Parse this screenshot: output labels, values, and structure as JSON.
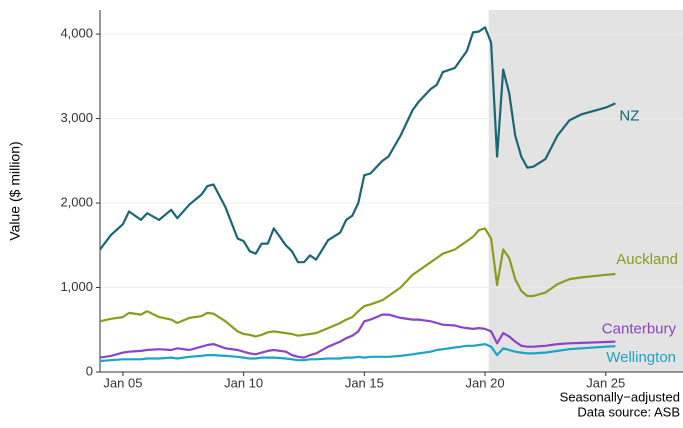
{
  "chart_data": {
    "type": "line",
    "y_label": "Value ($ million)",
    "caption": [
      "Seasonally−adjusted",
      "Data source: ASB"
    ],
    "x": [
      2004.05,
      2004.5,
      2005.0,
      2005.25,
      2005.75,
      2006.0,
      2006.5,
      2007.0,
      2007.25,
      2007.75,
      2008.25,
      2008.5,
      2008.75,
      2009.25,
      2009.75,
      2010.0,
      2010.25,
      2010.5,
      2010.75,
      2011.0,
      2011.25,
      2011.75,
      2012.0,
      2012.25,
      2012.5,
      2012.75,
      2013.0,
      2013.5,
      2014.0,
      2014.25,
      2014.5,
      2014.75,
      2015.0,
      2015.25,
      2015.75,
      2016.0,
      2016.5,
      2017.0,
      2017.25,
      2017.75,
      2018.0,
      2018.25,
      2018.75,
      2019.0,
      2019.25,
      2019.5,
      2019.75,
      2020.0,
      2020.25,
      2020.5,
      2020.75,
      2021.0,
      2021.25,
      2021.5,
      2021.75,
      2022.0,
      2022.5,
      2023.0,
      2023.5,
      2024.0,
      2025.0,
      2025.4
    ],
    "series": [
      {
        "name": "NZ",
        "color": "#1b6575",
        "values": [
          1450,
          1620,
          1750,
          1900,
          1800,
          1880,
          1800,
          1920,
          1820,
          1980,
          2100,
          2200,
          2220,
          1950,
          1580,
          1550,
          1430,
          1400,
          1520,
          1520,
          1700,
          1500,
          1430,
          1300,
          1300,
          1380,
          1330,
          1560,
          1650,
          1800,
          1850,
          2000,
          2330,
          2350,
          2500,
          2550,
          2800,
          3100,
          3200,
          3350,
          3400,
          3550,
          3600,
          3700,
          3800,
          4020,
          4030,
          4080,
          3900,
          2550,
          3580,
          3300,
          2800,
          2550,
          2420,
          2430,
          2520,
          2800,
          2980,
          3050,
          3130,
          3180
        ]
      },
      {
        "name": "Auckland",
        "color": "#8c9b1d",
        "values": [
          600,
          630,
          650,
          700,
          680,
          720,
          650,
          620,
          580,
          640,
          660,
          700,
          690,
          600,
          480,
          450,
          440,
          420,
          440,
          470,
          480,
          460,
          450,
          430,
          440,
          450,
          460,
          520,
          580,
          620,
          650,
          720,
          780,
          800,
          850,
          900,
          1000,
          1150,
          1200,
          1300,
          1350,
          1400,
          1450,
          1500,
          1550,
          1600,
          1680,
          1700,
          1580,
          1030,
          1450,
          1350,
          1100,
          960,
          900,
          900,
          940,
          1040,
          1100,
          1120,
          1150,
          1160
        ]
      },
      {
        "name": "Canterbury",
        "color": "#8a45c6",
        "values": [
          170,
          190,
          230,
          240,
          250,
          260,
          270,
          260,
          280,
          260,
          300,
          320,
          330,
          280,
          260,
          240,
          220,
          210,
          230,
          250,
          260,
          240,
          200,
          180,
          170,
          200,
          220,
          300,
          360,
          400,
          430,
          480,
          600,
          620,
          680,
          680,
          640,
          620,
          620,
          600,
          580,
          560,
          550,
          530,
          520,
          510,
          520,
          510,
          480,
          340,
          460,
          420,
          360,
          310,
          300,
          300,
          310,
          330,
          340,
          345,
          355,
          360
        ]
      },
      {
        "name": "Wellington",
        "color": "#1ba5c4",
        "values": [
          130,
          140,
          150,
          150,
          150,
          160,
          160,
          170,
          160,
          180,
          190,
          200,
          200,
          190,
          180,
          170,
          160,
          160,
          170,
          170,
          170,
          160,
          150,
          140,
          140,
          150,
          150,
          160,
          160,
          170,
          170,
          180,
          170,
          180,
          180,
          180,
          190,
          210,
          220,
          240,
          260,
          270,
          290,
          300,
          310,
          310,
          320,
          330,
          300,
          200,
          280,
          260,
          240,
          230,
          220,
          220,
          230,
          250,
          270,
          280,
          300,
          305
        ]
      }
    ],
    "xlim": [
      2004.05,
      2028.2
    ],
    "xticks": [
      {
        "value": 2005,
        "label": "Jan 05"
      },
      {
        "value": 2010,
        "label": "Jan 10"
      },
      {
        "value": 2015,
        "label": "Jan 15"
      },
      {
        "value": 2020,
        "label": "Jan 20"
      },
      {
        "value": 2025,
        "label": "Jan 25"
      }
    ],
    "ylim": [
      0,
      4285
    ],
    "yticks": [
      0,
      {
        "value": 1000,
        "label": "1,000"
      },
      {
        "value": 2000,
        "label": "2,000"
      },
      {
        "value": 3000,
        "label": "3,000"
      },
      {
        "value": 4000,
        "label": "4,000"
      }
    ],
    "shade_x": [
      2020.15,
      2028.2
    ],
    "shade_color": "#e3e3e3",
    "grid": true
  }
}
